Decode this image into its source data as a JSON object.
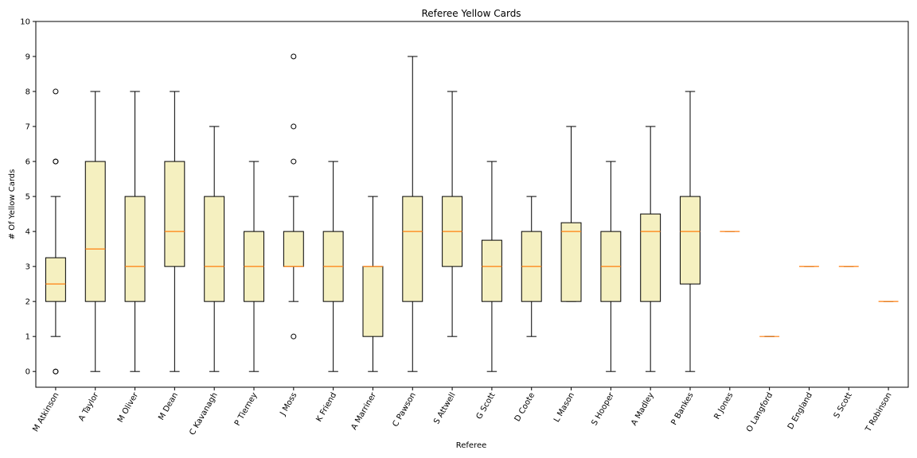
{
  "chart_data": {
    "type": "boxplot",
    "title": "Referee Yellow Cards",
    "xlabel": "Referee",
    "ylabel": "# Of Yellow Cards",
    "ylim": [
      -0.45,
      10
    ],
    "yticks": [
      0,
      1,
      2,
      3,
      4,
      5,
      6,
      7,
      8,
      9,
      10
    ],
    "grid": false,
    "colors": {
      "box_fill": "#f5f0c0",
      "box_edge": "#000000",
      "median": "#ff7f0e",
      "whisker": "#000000",
      "flier": "#000000"
    },
    "categories": [
      "M Atkinson",
      "A Taylor",
      "M Oliver",
      "M Dean",
      "C Kavanagh",
      "P Tierney",
      "J Moss",
      "K Friend",
      "A Marriner",
      "C Pawson",
      "S Attwell",
      "G Scott",
      "D Coote",
      "L Mason",
      "S Hooper",
      "A Madley",
      "P Bankes",
      "R Jones",
      "O Langford",
      "D England",
      "S Scott",
      "T Robinson"
    ],
    "boxes": [
      {
        "whislo": 1,
        "q1": 2,
        "med": 2.5,
        "q3": 3.25,
        "whishi": 5,
        "fliers": [
          0,
          0,
          6,
          6,
          8
        ]
      },
      {
        "whislo": 0,
        "q1": 2,
        "med": 3.5,
        "q3": 6,
        "whishi": 8,
        "fliers": []
      },
      {
        "whislo": 0,
        "q1": 2,
        "med": 3,
        "q3": 5,
        "whishi": 8,
        "fliers": []
      },
      {
        "whislo": 0,
        "q1": 3,
        "med": 4,
        "q3": 6,
        "whishi": 8,
        "fliers": []
      },
      {
        "whislo": 0,
        "q1": 2,
        "med": 3,
        "q3": 5,
        "whishi": 7,
        "fliers": []
      },
      {
        "whislo": 0,
        "q1": 2,
        "med": 3,
        "q3": 4,
        "whishi": 6,
        "fliers": []
      },
      {
        "whislo": 2,
        "q1": 3,
        "med": 3,
        "q3": 4,
        "whishi": 5,
        "fliers": [
          1,
          6,
          7,
          9
        ]
      },
      {
        "whislo": 0,
        "q1": 2,
        "med": 3,
        "q3": 4,
        "whishi": 6,
        "fliers": []
      },
      {
        "whislo": 0,
        "q1": 1,
        "med": 3,
        "q3": 3,
        "whishi": 5,
        "fliers": []
      },
      {
        "whislo": 0,
        "q1": 2,
        "med": 4,
        "q3": 5,
        "whishi": 9,
        "fliers": []
      },
      {
        "whislo": 1,
        "q1": 3,
        "med": 4,
        "q3": 5,
        "whishi": 8,
        "fliers": []
      },
      {
        "whislo": 0,
        "q1": 2,
        "med": 3,
        "q3": 3.75,
        "whishi": 6,
        "fliers": []
      },
      {
        "whislo": 1,
        "q1": 2,
        "med": 3,
        "q3": 4,
        "whishi": 5,
        "fliers": []
      },
      {
        "whislo": 2,
        "q1": 2,
        "med": 4,
        "q3": 4.25,
        "whishi": 7,
        "fliers": []
      },
      {
        "whislo": 0,
        "q1": 2,
        "med": 3,
        "q3": 4,
        "whishi": 6,
        "fliers": []
      },
      {
        "whislo": 0,
        "q1": 2,
        "med": 4,
        "q3": 4.5,
        "whishi": 7,
        "fliers": []
      },
      {
        "whislo": 0,
        "q1": 2.5,
        "med": 4,
        "q3": 5,
        "whishi": 8,
        "fliers": []
      },
      {
        "whislo": 4,
        "q1": 4,
        "med": 4,
        "q3": 4,
        "whishi": 4,
        "fliers": []
      },
      {
        "whislo": 1,
        "q1": 1,
        "med": 1,
        "q3": 1,
        "whishi": 1,
        "fliers": []
      },
      {
        "whislo": 3,
        "q1": 3,
        "med": 3,
        "q3": 3,
        "whishi": 3,
        "fliers": []
      },
      {
        "whislo": 3,
        "q1": 3,
        "med": 3,
        "q3": 3,
        "whishi": 3,
        "fliers": []
      },
      {
        "whislo": 2,
        "q1": 2,
        "med": 2,
        "q3": 2,
        "whishi": 2,
        "fliers": []
      }
    ]
  }
}
